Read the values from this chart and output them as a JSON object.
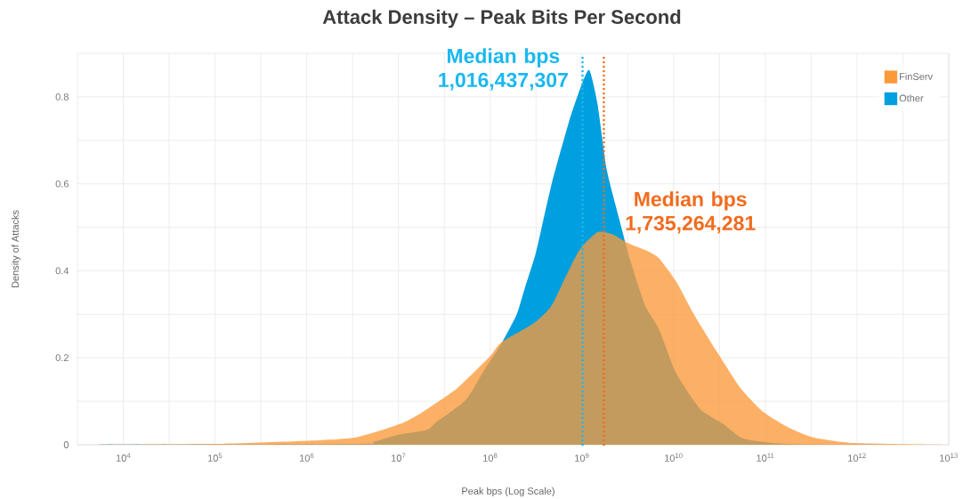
{
  "chart_data": {
    "type": "area",
    "title": "Attack Density – Peak Bits Per Second",
    "xlabel": "Peak bps (Log Scale)",
    "ylabel": "Density of Attacks",
    "series": [
      {
        "name": "FinServ",
        "color": "#fb9a3a",
        "x": [
          3160.0,
          105000.0,
          1000000.0,
          3470000.0,
          10500000.0,
          17400000.0,
          43700000.0,
          100000000.0,
          132000000.0,
          302000000.0,
          468000000.0,
          676000000.0,
          955000000.0,
          1480000000.0,
          2140000000.0,
          3160000000.0,
          5130000000.0,
          6920000000.0,
          10700000000.0,
          16600000000.0,
          30200000000.0,
          53700000000.0,
          95500000000.0,
          174000000000.0,
          331000000000.0,
          933000000000.0,
          9330000000000.0
        ],
        "values": [
          0,
          0.002,
          0.009,
          0.017,
          0.048,
          0.072,
          0.13,
          0.204,
          0.235,
          0.28,
          0.32,
          0.389,
          0.45,
          0.489,
          0.484,
          0.464,
          0.446,
          0.429,
          0.375,
          0.3,
          0.211,
          0.13,
          0.075,
          0.041,
          0.017,
          0.004,
          0
        ]
      },
      {
        "name": "Other",
        "color": "#009fdf",
        "x": [
          3160.0,
          3470000.0,
          5370000.0,
          9550000.0,
          20400000.0,
          26900000.0,
          53700000.0,
          85100000.0,
          138000000.0,
          195000000.0,
          240000000.0,
          316000000.0,
          468000000.0,
          724000000.0,
          955000000.0,
          1200000000.0,
          1480000000.0,
          1860000000.0,
          2510000000.0,
          3310000000.0,
          4900000000.0,
          6920000000.0,
          10700000000.0,
          19500000000.0,
          34700000000.0,
          53700000000.0,
          89100000000.0,
          229000000000.0,
          9330000000000.0
        ],
        "values": [
          0,
          0.002,
          0.007,
          0.022,
          0.034,
          0.055,
          0.102,
          0.17,
          0.239,
          0.3,
          0.362,
          0.443,
          0.6,
          0.743,
          0.818,
          0.862,
          0.784,
          0.634,
          0.525,
          0.429,
          0.32,
          0.266,
          0.164,
          0.082,
          0.048,
          0.017,
          0.007,
          0.001,
          0
        ]
      }
    ],
    "ref_lines": [
      {
        "axis": "x",
        "value": 1016437307,
        "label": "Median bps 1,016,437,307",
        "color": "#1ab8f0",
        "line_style": "dotted"
      },
      {
        "axis": "x",
        "value": 1735264281,
        "label": "Median bps 1,735,264,281",
        "color": "#f26b1d",
        "line_style": "dotted"
      }
    ],
    "xlim": [
      3160,
      10000000000000.0
    ],
    "ylim": [
      0,
      0.9
    ],
    "xticks": [
      {
        "value": 10000.0,
        "label": "10$^{4}$"
      },
      {
        "value": 100000.0,
        "label": "10$^{5}$"
      },
      {
        "value": 1000000.0,
        "label": "10$^{6}$"
      },
      {
        "value": 10000000.0,
        "label": "10$^{7}$"
      },
      {
        "value": 100000000.0,
        "label": "10$^{8}$"
      },
      {
        "value": 1000000000.0,
        "label": "10$^{9}$"
      },
      {
        "value": 10000000000.0,
        "label": "10$^{10}$"
      },
      {
        "value": 100000000000.0,
        "label": "10$^{11}$"
      },
      {
        "value": 1000000000000.0,
        "label": "10$^{12}$"
      },
      {
        "value": 10000000000000.0,
        "label": "10$^{13}$"
      }
    ],
    "yticks": [
      0,
      0.2,
      0.4,
      0.6,
      0.8
    ],
    "log": "x",
    "grid": true,
    "legend": "top right"
  }
}
